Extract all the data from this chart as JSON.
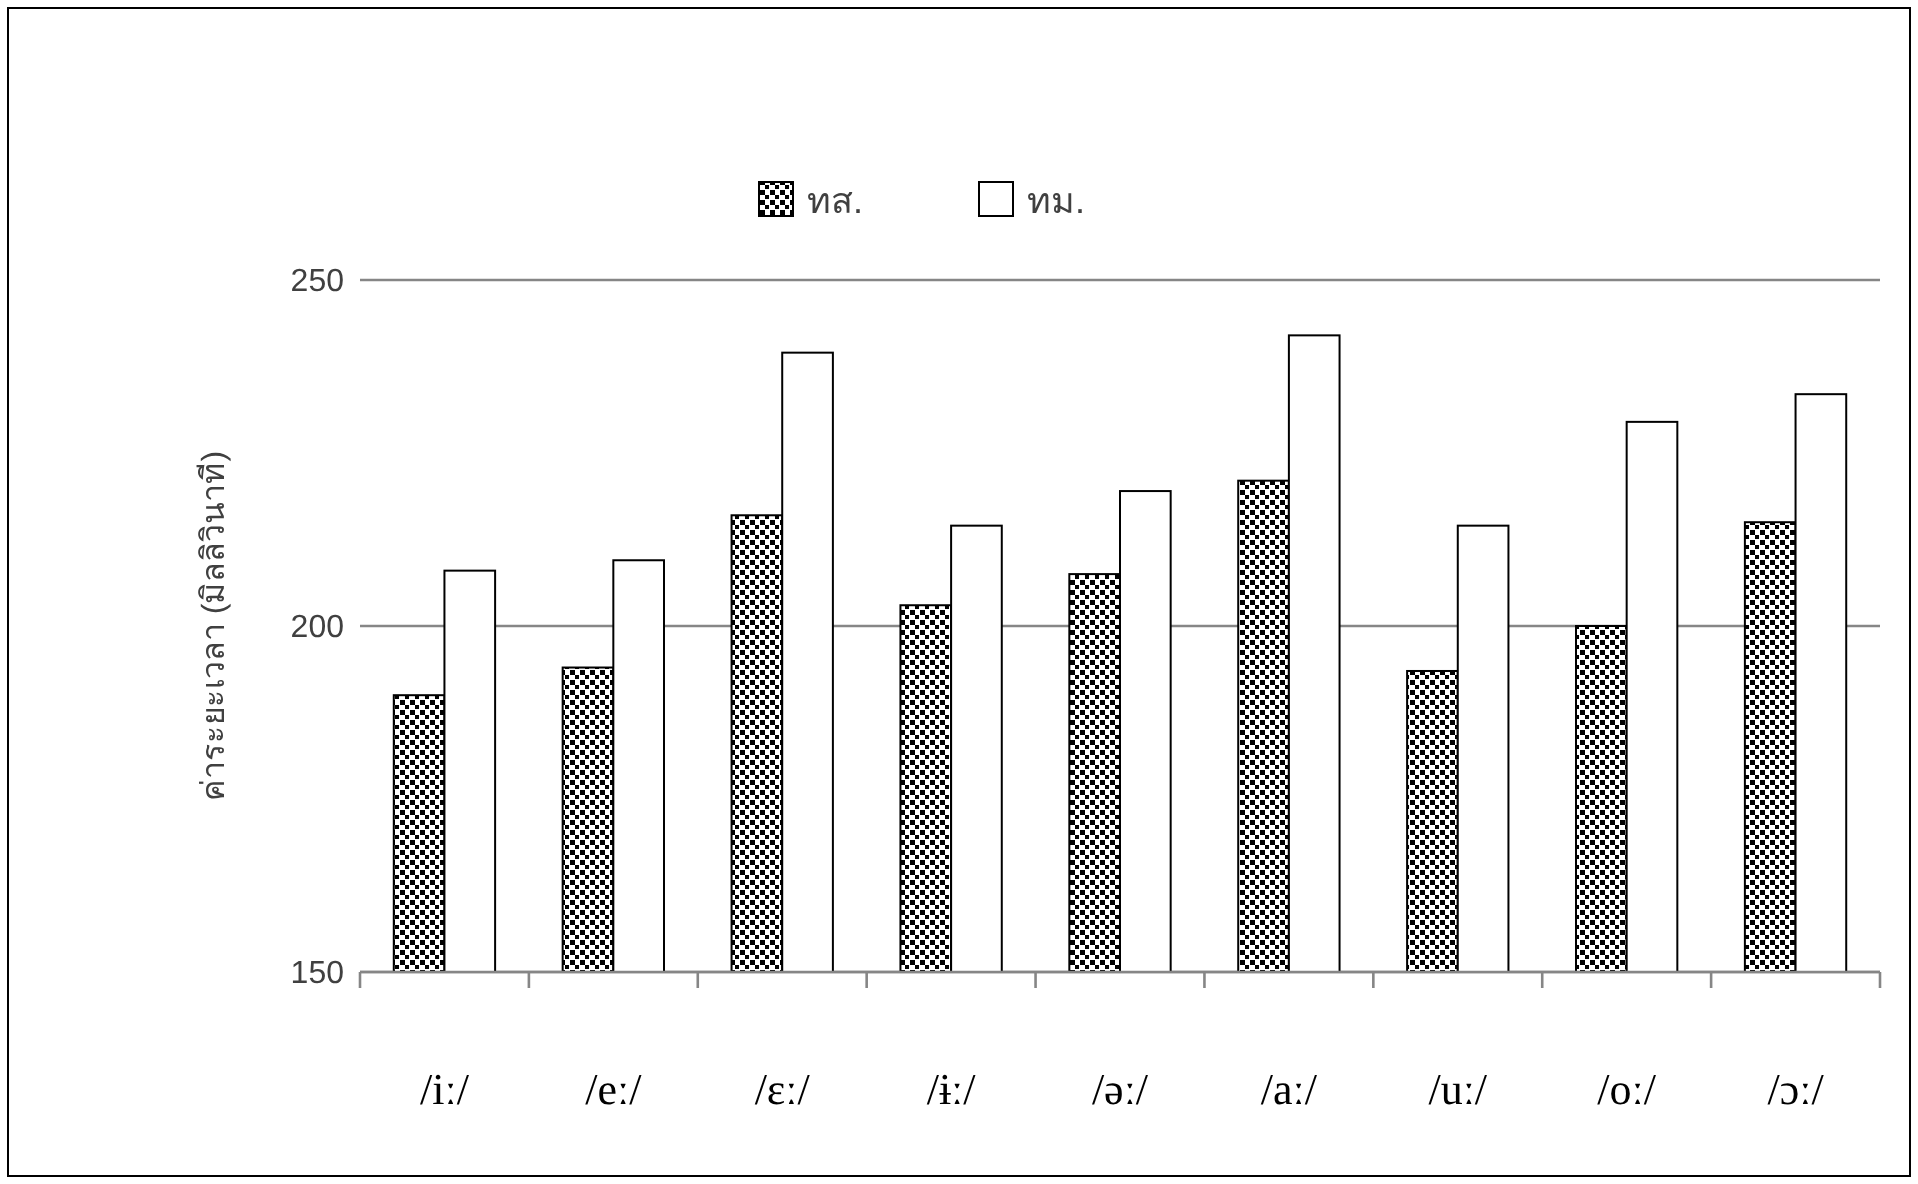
{
  "chart_data": {
    "type": "bar",
    "ylabel": "ค่าระยะเวลา (มิลลิวินาที)",
    "categories": [
      "/iː/",
      "/eː/",
      "/ɛː/",
      "/ɨː/",
      "/əː/",
      "/aː/",
      "/uː/",
      "/oː/",
      "/ɔː/"
    ],
    "series": [
      {
        "name": "ทส.",
        "color": "#000000",
        "values": [
          190,
          194,
          216,
          203,
          207.5,
          221,
          193.5,
          200,
          215
        ]
      },
      {
        "name": "ทม.",
        "color": "#ffffff",
        "values": [
          208,
          209.5,
          239.5,
          214.5,
          219.5,
          242,
          214.5,
          229.5,
          233.5
        ]
      }
    ],
    "ylim": [
      150,
      250
    ],
    "yticks": [
      150,
      200,
      250
    ],
    "grid": "y",
    "legend": "top"
  }
}
